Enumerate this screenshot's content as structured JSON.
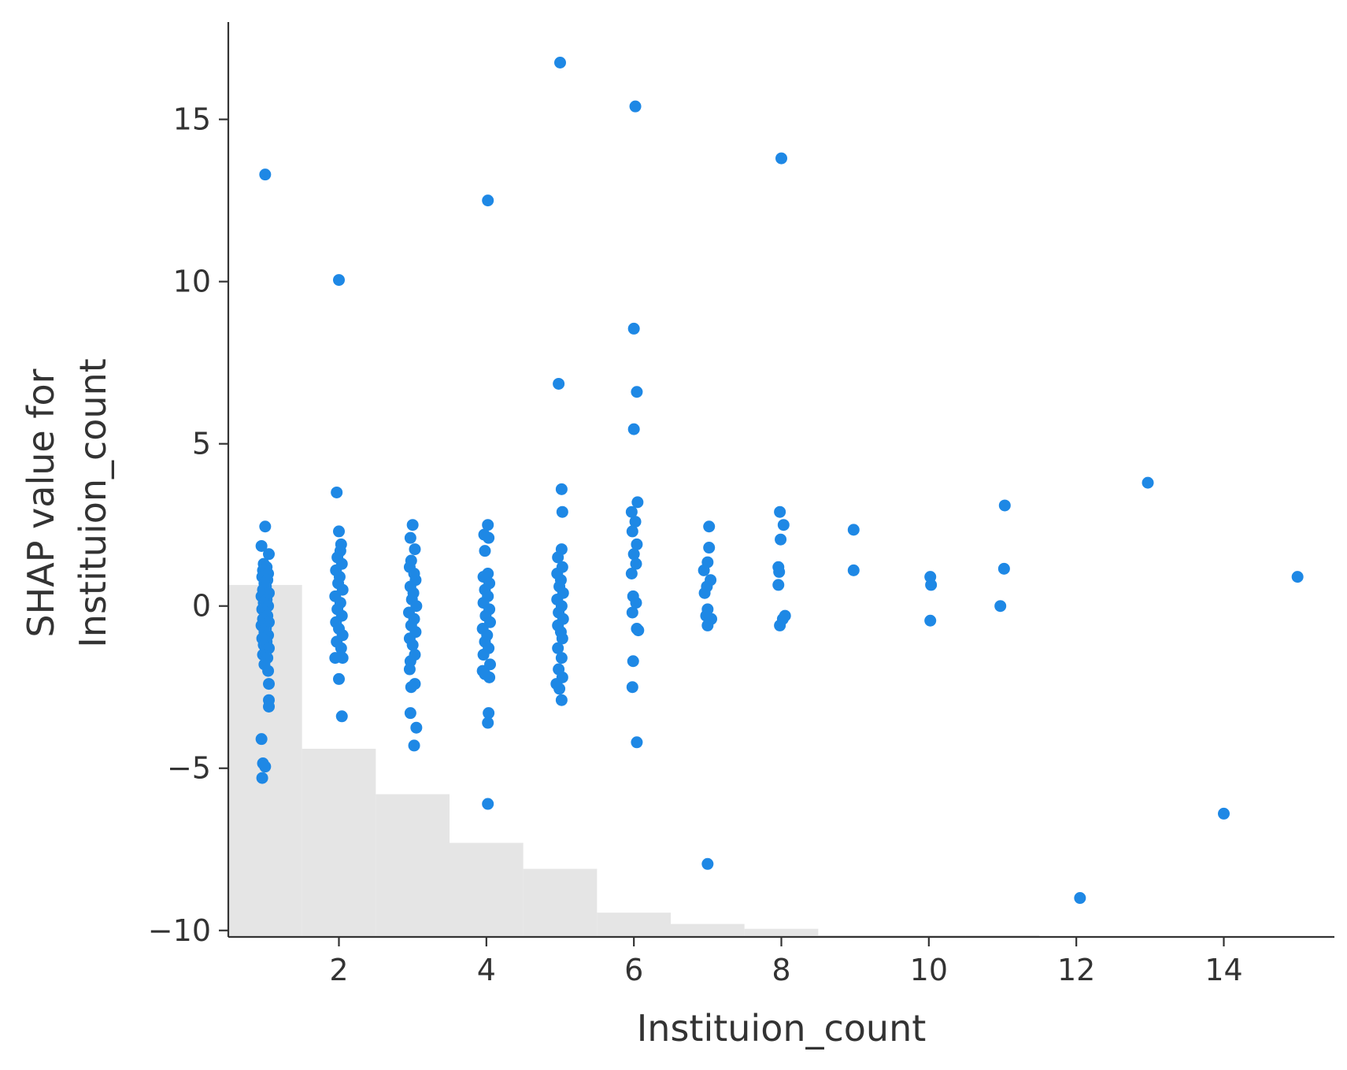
{
  "chart_data": {
    "type": "scatter",
    "title": "",
    "xlabel": "Instituion_count",
    "ylabel_lines": [
      "SHAP value for",
      "Instituion_count"
    ],
    "xlim": [
      0.5,
      15.5
    ],
    "ylim": [
      -10.2,
      18.0
    ],
    "xticks": [
      2,
      4,
      6,
      8,
      10,
      12,
      14
    ],
    "yticks": [
      -10,
      -5,
      0,
      5,
      10,
      15
    ],
    "grid": false,
    "point_color": "#1e88e5",
    "histogram_color": "#e5e5e5",
    "histogram": {
      "bin_edges": [
        0.5,
        1.5,
        2.5,
        3.5,
        4.5,
        5.5,
        6.5,
        7.5,
        8.5,
        9.5,
        10.5,
        11.5
      ],
      "heights_in_y_units": [
        0.65,
        -4.4,
        -5.8,
        -7.3,
        -8.1,
        -9.45,
        -9.8,
        -9.95,
        -10.15,
        -10.15,
        -10.15
      ]
    },
    "series": [
      {
        "points": [
          [
            1.0,
            13.3
          ],
          [
            1.0,
            2.45
          ],
          [
            0.95,
            1.85
          ],
          [
            1.05,
            1.6
          ],
          [
            0.98,
            1.3
          ],
          [
            1.02,
            1.2
          ],
          [
            0.97,
            1.1
          ],
          [
            1.04,
            1.0
          ],
          [
            0.96,
            0.9
          ],
          [
            1.03,
            0.8
          ],
          [
            0.99,
            0.7
          ],
          [
            1.01,
            0.6
          ],
          [
            0.97,
            0.5
          ],
          [
            1.05,
            0.4
          ],
          [
            0.95,
            0.3
          ],
          [
            1.02,
            0.2
          ],
          [
            0.98,
            0.1
          ],
          [
            1.04,
            0.0
          ],
          [
            0.96,
            -0.1
          ],
          [
            1.0,
            -0.2
          ],
          [
            1.03,
            -0.3
          ],
          [
            0.97,
            -0.4
          ],
          [
            1.05,
            -0.5
          ],
          [
            0.95,
            -0.6
          ],
          [
            1.01,
            -0.7
          ],
          [
            0.99,
            -0.8
          ],
          [
            1.04,
            -0.9
          ],
          [
            0.96,
            -1.0
          ],
          [
            1.02,
            -1.1
          ],
          [
            0.98,
            -1.2
          ],
          [
            1.05,
            -1.3
          ],
          [
            0.97,
            -1.5
          ],
          [
            1.03,
            -1.6
          ],
          [
            0.99,
            -1.8
          ],
          [
            1.04,
            -2.0
          ],
          [
            1.05,
            -2.4
          ],
          [
            1.05,
            -2.9
          ],
          [
            1.05,
            -3.1
          ],
          [
            0.95,
            -4.1
          ],
          [
            0.97,
            -4.85
          ],
          [
            1.0,
            -4.95
          ],
          [
            0.96,
            -5.3
          ],
          [
            2.0,
            10.05
          ],
          [
            1.97,
            3.5
          ],
          [
            2.0,
            2.3
          ],
          [
            2.03,
            1.9
          ],
          [
            2.02,
            1.7
          ],
          [
            1.98,
            1.5
          ],
          [
            2.04,
            1.3
          ],
          [
            1.96,
            1.1
          ],
          [
            2.01,
            0.9
          ],
          [
            1.99,
            0.7
          ],
          [
            2.05,
            0.5
          ],
          [
            1.95,
            0.3
          ],
          [
            2.02,
            0.1
          ],
          [
            1.98,
            -0.1
          ],
          [
            2.04,
            -0.3
          ],
          [
            1.96,
            -0.5
          ],
          [
            2.0,
            -0.7
          ],
          [
            2.05,
            -0.9
          ],
          [
            1.97,
            -1.1
          ],
          [
            2.03,
            -1.3
          ],
          [
            2.05,
            -1.6
          ],
          [
            1.95,
            -1.6
          ],
          [
            2.0,
            -2.25
          ],
          [
            2.04,
            -3.4
          ],
          [
            3.0,
            2.5
          ],
          [
            2.97,
            2.1
          ],
          [
            3.03,
            1.75
          ],
          [
            2.98,
            1.4
          ],
          [
            2.96,
            1.2
          ],
          [
            3.02,
            1.0
          ],
          [
            3.04,
            0.8
          ],
          [
            2.97,
            0.6
          ],
          [
            3.01,
            0.4
          ],
          [
            2.99,
            0.2
          ],
          [
            3.05,
            0.0
          ],
          [
            2.95,
            -0.2
          ],
          [
            3.02,
            -0.4
          ],
          [
            2.98,
            -0.6
          ],
          [
            3.04,
            -0.8
          ],
          [
            2.96,
            -1.0
          ],
          [
            3.0,
            -1.2
          ],
          [
            3.03,
            -1.5
          ],
          [
            2.97,
            -1.7
          ],
          [
            2.96,
            -1.95
          ],
          [
            3.03,
            -2.4
          ],
          [
            2.98,
            -2.5
          ],
          [
            2.97,
            -3.3
          ],
          [
            3.05,
            -3.75
          ],
          [
            3.02,
            -4.3
          ],
          [
            4.02,
            2.5
          ],
          [
            3.97,
            2.2
          ],
          [
            4.03,
            2.1
          ],
          [
            3.98,
            1.7
          ],
          [
            4.02,
            1.0
          ],
          [
            3.96,
            0.9
          ],
          [
            4.04,
            0.7
          ],
          [
            3.98,
            0.5
          ],
          [
            4.02,
            0.3
          ],
          [
            3.96,
            0.1
          ],
          [
            4.04,
            -0.1
          ],
          [
            3.99,
            -0.3
          ],
          [
            4.05,
            -0.5
          ],
          [
            3.95,
            -0.7
          ],
          [
            4.01,
            -0.9
          ],
          [
            3.98,
            -1.1
          ],
          [
            4.03,
            -1.3
          ],
          [
            3.96,
            -1.5
          ],
          [
            4.05,
            -1.8
          ],
          [
            3.95,
            -2.0
          ],
          [
            4.04,
            -2.2
          ],
          [
            3.98,
            -2.1
          ],
          [
            4.03,
            -3.3
          ],
          [
            4.02,
            -3.6
          ],
          [
            4.02,
            -6.1
          ],
          [
            4.02,
            12.5
          ],
          [
            5.0,
            16.75
          ],
          [
            4.98,
            6.85
          ],
          [
            5.02,
            3.6
          ],
          [
            5.03,
            2.9
          ],
          [
            5.02,
            1.75
          ],
          [
            4.97,
            1.5
          ],
          [
            5.03,
            1.2
          ],
          [
            4.96,
            1.0
          ],
          [
            5.01,
            0.8
          ],
          [
            4.99,
            0.6
          ],
          [
            5.04,
            0.4
          ],
          [
            4.96,
            0.2
          ],
          [
            5.02,
            0.0
          ],
          [
            4.98,
            -0.2
          ],
          [
            5.04,
            -0.4
          ],
          [
            4.97,
            -0.6
          ],
          [
            5.01,
            -0.8
          ],
          [
            5.03,
            -1.0
          ],
          [
            4.97,
            -1.3
          ],
          [
            5.02,
            -1.6
          ],
          [
            4.98,
            -1.95
          ],
          [
            5.03,
            -2.2
          ],
          [
            4.95,
            -2.4
          ],
          [
            4.99,
            -2.55
          ],
          [
            5.02,
            -2.9
          ],
          [
            6.02,
            15.4
          ],
          [
            6.0,
            8.55
          ],
          [
            6.04,
            6.6
          ],
          [
            6.0,
            5.45
          ],
          [
            6.05,
            3.2
          ],
          [
            5.97,
            2.9
          ],
          [
            6.02,
            2.6
          ],
          [
            5.98,
            2.3
          ],
          [
            6.04,
            1.9
          ],
          [
            6.0,
            1.6
          ],
          [
            6.03,
            1.3
          ],
          [
            5.97,
            1.0
          ],
          [
            5.99,
            0.3
          ],
          [
            6.03,
            0.1
          ],
          [
            5.98,
            -0.2
          ],
          [
            6.04,
            -0.7
          ],
          [
            6.06,
            -0.75
          ],
          [
            5.99,
            -1.7
          ],
          [
            5.98,
            -2.5
          ],
          [
            6.04,
            -4.2
          ],
          [
            7.02,
            2.45
          ],
          [
            7.02,
            1.8
          ],
          [
            7.0,
            1.35
          ],
          [
            6.95,
            1.1
          ],
          [
            7.04,
            0.8
          ],
          [
            6.99,
            0.6
          ],
          [
            6.96,
            0.4
          ],
          [
            7.0,
            -0.1
          ],
          [
            7.05,
            -0.4
          ],
          [
            6.98,
            -0.3
          ],
          [
            7.0,
            -0.6
          ],
          [
            7.0,
            -7.95
          ],
          [
            8.0,
            13.8
          ],
          [
            7.98,
            2.9
          ],
          [
            8.03,
            2.5
          ],
          [
            7.99,
            2.05
          ],
          [
            7.96,
            1.2
          ],
          [
            7.97,
            1.05
          ],
          [
            7.96,
            0.65
          ],
          [
            8.05,
            -0.3
          ],
          [
            8.02,
            -0.4
          ],
          [
            7.98,
            -0.6
          ],
          [
            8.98,
            2.35
          ],
          [
            8.98,
            1.1
          ],
          [
            10.02,
            0.9
          ],
          [
            10.03,
            0.65
          ],
          [
            10.02,
            -0.45
          ],
          [
            11.03,
            3.1
          ],
          [
            11.02,
            1.15
          ],
          [
            10.97,
            0.0
          ],
          [
            12.05,
            -9.0
          ],
          [
            12.97,
            3.8
          ],
          [
            14.0,
            -6.4
          ],
          [
            15.0,
            0.9
          ]
        ]
      }
    ]
  }
}
